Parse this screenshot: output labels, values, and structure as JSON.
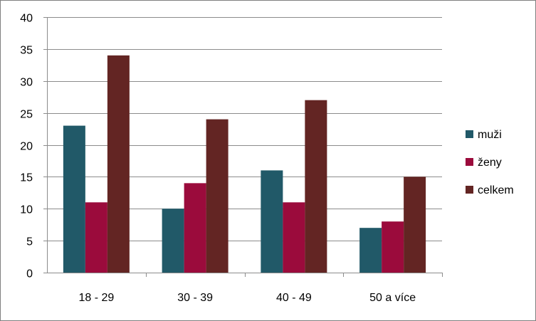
{
  "chart_data": {
    "type": "bar",
    "categories": [
      "18 - 29",
      "30 - 39",
      "40 - 49",
      "50 a více"
    ],
    "series": [
      {
        "name": "muži",
        "values": [
          23,
          10,
          16,
          7
        ],
        "color": "#215968"
      },
      {
        "name": "ženy",
        "values": [
          11,
          14,
          11,
          8
        ],
        "color": "#9b0b3c"
      },
      {
        "name": "celkem",
        "values": [
          34,
          24,
          27,
          15
        ],
        "color": "#632523"
      }
    ],
    "yticks": [
      0,
      5,
      10,
      15,
      20,
      25,
      30,
      35,
      40
    ],
    "ylim": [
      0,
      40
    ],
    "grid": true,
    "legend": "right"
  }
}
